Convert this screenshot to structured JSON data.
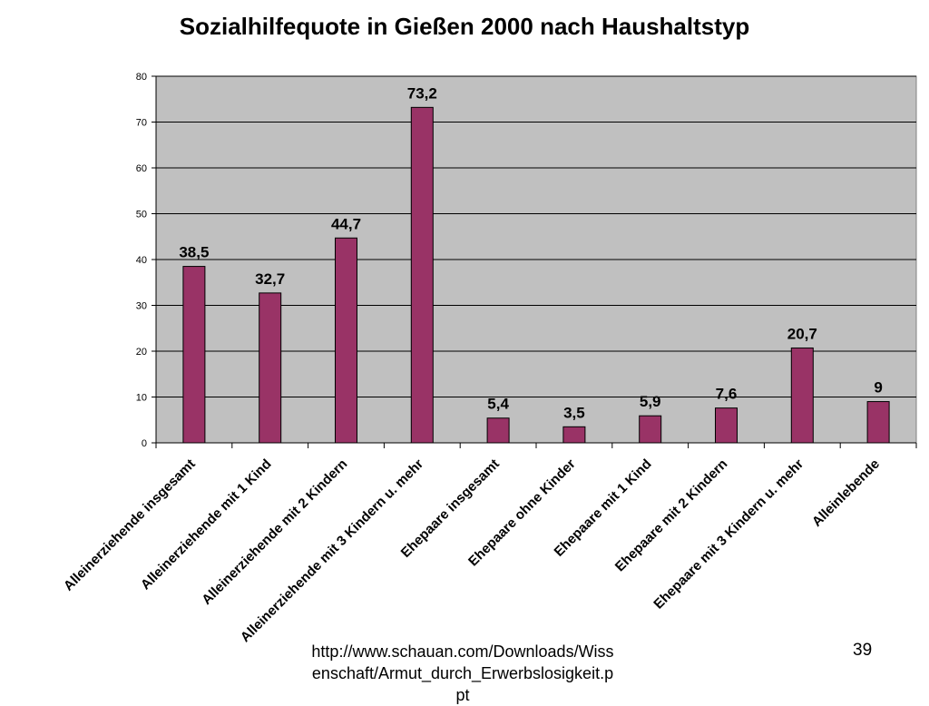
{
  "chart_data": {
    "type": "bar",
    "title": "Sozialhilfequote in Gießen 2000 nach Haushaltstyp",
    "categories": [
      "Alleinerziehende insgesamt",
      "Alleinerziehende mit 1 Kind",
      "Alleinerziehende mit 2 Kindern",
      "Alleinerziehende mit 3 Kindern u. mehr",
      "Ehepaare insgesamt",
      "Ehepaare ohne Kinder",
      "Ehepaare mit 1 Kind",
      "Ehepaare mit 2 Kindern",
      "Ehepaare mit 3 Kindern u. mehr",
      "Alleinlebende"
    ],
    "values": [
      38.5,
      32.7,
      44.7,
      73.2,
      5.4,
      3.5,
      5.9,
      7.6,
      20.7,
      9
    ],
    "value_labels": [
      "38,5",
      "32,7",
      "44,7",
      "73,2",
      "5,4",
      "3,5",
      "5,9",
      "7,6",
      "20,7",
      "9"
    ],
    "ylim": [
      0,
      80
    ],
    "yticks": [
      "0",
      "10",
      "20",
      "30",
      "40",
      "50",
      "60",
      "70",
      "80"
    ],
    "xlabel": "",
    "ylabel": "",
    "grid": true,
    "colors": {
      "bar": "#993366",
      "plot_bg": "#c0c0c0",
      "grid": "#000000"
    }
  },
  "footer": {
    "source": "http://www.schauan.com/Downloads/Wissenschaft/Armut_durch_Erwerbslosigkeit.ppt",
    "page_number": "39"
  }
}
